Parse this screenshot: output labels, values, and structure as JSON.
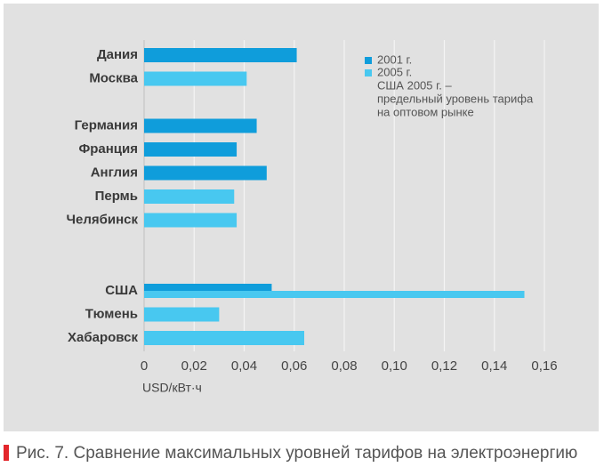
{
  "chart_data": {
    "type": "hbar",
    "categories": [
      "Дания",
      "Москва",
      null,
      "Германия",
      "Франция",
      "Англия",
      "Пермь",
      "Челябинск",
      null,
      null,
      "США",
      "Тюмень",
      "Хабаровск"
    ],
    "series": [
      {
        "name": "2001 г.",
        "color": "#0f9ddb",
        "values": [
          0.061,
          null,
          null,
          0.045,
          0.037,
          0.049,
          null,
          null,
          null,
          null,
          0.051,
          null,
          null
        ]
      },
      {
        "name": "2005 г.",
        "color": "#48c8f0",
        "values": [
          null,
          0.041,
          null,
          null,
          null,
          null,
          0.036,
          0.037,
          null,
          null,
          0.152,
          0.03,
          0.064
        ]
      }
    ],
    "legend_note": [
      "США 2005 г. –",
      "предельный уровень тарифа",
      "на оптовом рынке"
    ],
    "xlabel": "USD/кВт·ч",
    "xlim": [
      0,
      0.16
    ],
    "xticks": [
      0,
      {
        "value": 0.02,
        "label": "0,02"
      },
      {
        "value": 0.04,
        "label": "0,04"
      },
      {
        "value": 0.06,
        "label": "0,06"
      },
      {
        "value": 0.08,
        "label": "0,08"
      },
      {
        "value": 0.1,
        "label": "0,10"
      },
      {
        "value": 0.12,
        "label": "0,12"
      },
      {
        "value": 0.14,
        "label": "0,14"
      },
      {
        "value": 0.16,
        "label": "0,16"
      }
    ],
    "grid": true,
    "caption": "Рис. 7. Сравнение максимальных уровней тарифов на электроэнергию"
  }
}
